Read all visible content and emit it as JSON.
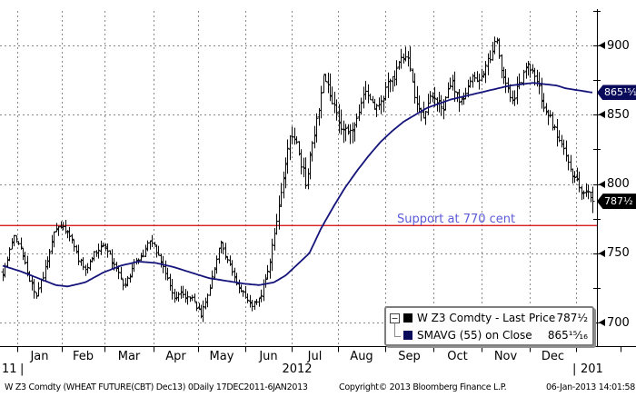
{
  "chart_data": {
    "type": "bar",
    "subtype": "ohlc-daily-bars-with-moving-average",
    "instrument": "W Z3 Comdty",
    "description": "WHEAT FUTURE(CBT) Dec13",
    "frequency": "0Daily",
    "date_range": "17DEC2011-6JAN2013",
    "x_tick_labels": [
      "Jan",
      "Feb",
      "Mar",
      "Apr",
      "May",
      "Jun",
      "Jul",
      "Aug",
      "Sep",
      "Oct",
      "Nov",
      "Dec"
    ],
    "year_row": {
      "left_clipped": "11",
      "separator_left": "|",
      "center": "2012",
      "separator_right": "|",
      "right_clipped": "201"
    },
    "y_axis": {
      "side": "right",
      "labeled_ticks": [
        900,
        850,
        800,
        750,
        700
      ],
      "minor_tick_step": 25,
      "range": [
        690,
        928
      ]
    },
    "grid": true,
    "legend_position": "bottom-right",
    "series": [
      {
        "name": "W Z3 Comdty - Last Price",
        "type": "ohlc_bars",
        "color": "#0a0a0a",
        "n_bars": 266,
        "last_price": 787.5,
        "last_price_label": "787¹⁄₂",
        "tag_bg": "#000000",
        "close_path_anchors": [
          [
            0.0,
            734
          ],
          [
            0.008,
            744
          ],
          [
            0.02,
            764
          ],
          [
            0.032,
            750
          ],
          [
            0.044,
            733
          ],
          [
            0.056,
            722
          ],
          [
            0.068,
            734
          ],
          [
            0.078,
            746
          ],
          [
            0.088,
            766
          ],
          [
            0.1,
            772
          ],
          [
            0.112,
            764
          ],
          [
            0.126,
            748
          ],
          [
            0.14,
            737
          ],
          [
            0.154,
            750
          ],
          [
            0.166,
            756
          ],
          [
            0.178,
            750
          ],
          [
            0.194,
            734
          ],
          [
            0.206,
            724
          ],
          [
            0.222,
            742
          ],
          [
            0.236,
            750
          ],
          [
            0.248,
            757
          ],
          [
            0.262,
            750
          ],
          [
            0.276,
            736
          ],
          [
            0.292,
            714
          ],
          [
            0.306,
            720
          ],
          [
            0.32,
            716
          ],
          [
            0.336,
            706
          ],
          [
            0.352,
            726
          ],
          [
            0.368,
            760
          ],
          [
            0.382,
            742
          ],
          [
            0.398,
            730
          ],
          [
            0.41,
            722
          ],
          [
            0.422,
            712
          ],
          [
            0.436,
            722
          ],
          [
            0.452,
            740
          ],
          [
            0.464,
            772
          ],
          [
            0.478,
            810
          ],
          [
            0.49,
            836
          ],
          [
            0.502,
            820
          ],
          [
            0.514,
            800
          ],
          [
            0.524,
            826
          ],
          [
            0.532,
            848
          ],
          [
            0.545,
            878
          ],
          [
            0.556,
            868
          ],
          [
            0.57,
            848
          ],
          [
            0.584,
            834
          ],
          [
            0.598,
            850
          ],
          [
            0.612,
            866
          ],
          [
            0.628,
            854
          ],
          [
            0.64,
            862
          ],
          [
            0.652,
            872
          ],
          [
            0.666,
            880
          ],
          [
            0.686,
            890
          ],
          [
            0.7,
            862
          ],
          [
            0.714,
            848
          ],
          [
            0.73,
            862
          ],
          [
            0.746,
            856
          ],
          [
            0.762,
            870
          ],
          [
            0.778,
            860
          ],
          [
            0.795,
            872
          ],
          [
            0.812,
            874
          ],
          [
            0.828,
            890
          ],
          [
            0.838,
            903
          ],
          [
            0.85,
            878
          ],
          [
            0.862,
            858
          ],
          [
            0.876,
            872
          ],
          [
            0.888,
            886
          ],
          [
            0.9,
            878
          ],
          [
            0.912,
            862
          ],
          [
            0.928,
            846
          ],
          [
            0.944,
            830
          ],
          [
            0.958,
            820
          ],
          [
            0.972,
            806
          ],
          [
            0.986,
            796
          ],
          [
            1.0,
            787.5
          ]
        ],
        "bar_range_anchors": [
          [
            0.0,
            11
          ],
          [
            0.3,
            10
          ],
          [
            0.42,
            9
          ],
          [
            0.47,
            15
          ],
          [
            0.56,
            20
          ],
          [
            0.62,
            17
          ],
          [
            0.7,
            17
          ],
          [
            0.8,
            14
          ],
          [
            0.86,
            16
          ],
          [
            0.93,
            14
          ],
          [
            1.0,
            13
          ]
        ]
      },
      {
        "name": "SMAVG (55) on Close",
        "type": "line",
        "color": "#14147a",
        "last_value": 865.9375,
        "last_value_label": "865¹⁵⁄₁₆",
        "tag_bg": "#0b0b5b",
        "path_anchors": [
          [
            0.0,
            741
          ],
          [
            0.03,
            737
          ],
          [
            0.06,
            732
          ],
          [
            0.09,
            727
          ],
          [
            0.11,
            726
          ],
          [
            0.14,
            729
          ],
          [
            0.17,
            736
          ],
          [
            0.2,
            741
          ],
          [
            0.23,
            744
          ],
          [
            0.26,
            743
          ],
          [
            0.29,
            740
          ],
          [
            0.32,
            736
          ],
          [
            0.35,
            732
          ],
          [
            0.38,
            730
          ],
          [
            0.41,
            728
          ],
          [
            0.435,
            727
          ],
          [
            0.46,
            729
          ],
          [
            0.48,
            734
          ],
          [
            0.5,
            742
          ],
          [
            0.52,
            750
          ],
          [
            0.54,
            768
          ],
          [
            0.56,
            783
          ],
          [
            0.58,
            797
          ],
          [
            0.6,
            809
          ],
          [
            0.62,
            820
          ],
          [
            0.64,
            830
          ],
          [
            0.66,
            838
          ],
          [
            0.68,
            845
          ],
          [
            0.7,
            850
          ],
          [
            0.72,
            855
          ],
          [
            0.74,
            858
          ],
          [
            0.76,
            861
          ],
          [
            0.78,
            863
          ],
          [
            0.8,
            865
          ],
          [
            0.82,
            867
          ],
          [
            0.84,
            869
          ],
          [
            0.86,
            871
          ],
          [
            0.88,
            872
          ],
          [
            0.9,
            873
          ],
          [
            0.92,
            872
          ],
          [
            0.94,
            871
          ],
          [
            0.955,
            869
          ],
          [
            0.97,
            868
          ],
          [
            0.985,
            867
          ],
          [
            1.0,
            866
          ]
        ]
      }
    ],
    "support_line": {
      "price": 770,
      "label": "Support at 770 cent",
      "line_color": "#d40000",
      "label_color": "#5c5cd6"
    },
    "legend": {
      "tree_toggle": "collapse",
      "rows": [
        {
          "label": "W Z3 Comdty - Last Price",
          "value": "787¹⁄₂",
          "swatch_color": "#000000"
        },
        {
          "label": "SMAVG (55) on Close",
          "value": "865¹⁵⁄₁₆",
          "swatch_color": "#0b0b5b"
        }
      ]
    },
    "colors": {
      "grid": "#8a8a8a",
      "axis": "#000000",
      "background": "#ffffff"
    }
  },
  "footer": {
    "left": "W Z3 Comdty (WHEAT FUTURE(CBT) Dec13) 0Daily 17DEC2011-6JAN2013",
    "center": "Copyright© 2013 Bloomberg Finance L.P.",
    "right": "06-Jan-2013 14:01:58"
  }
}
